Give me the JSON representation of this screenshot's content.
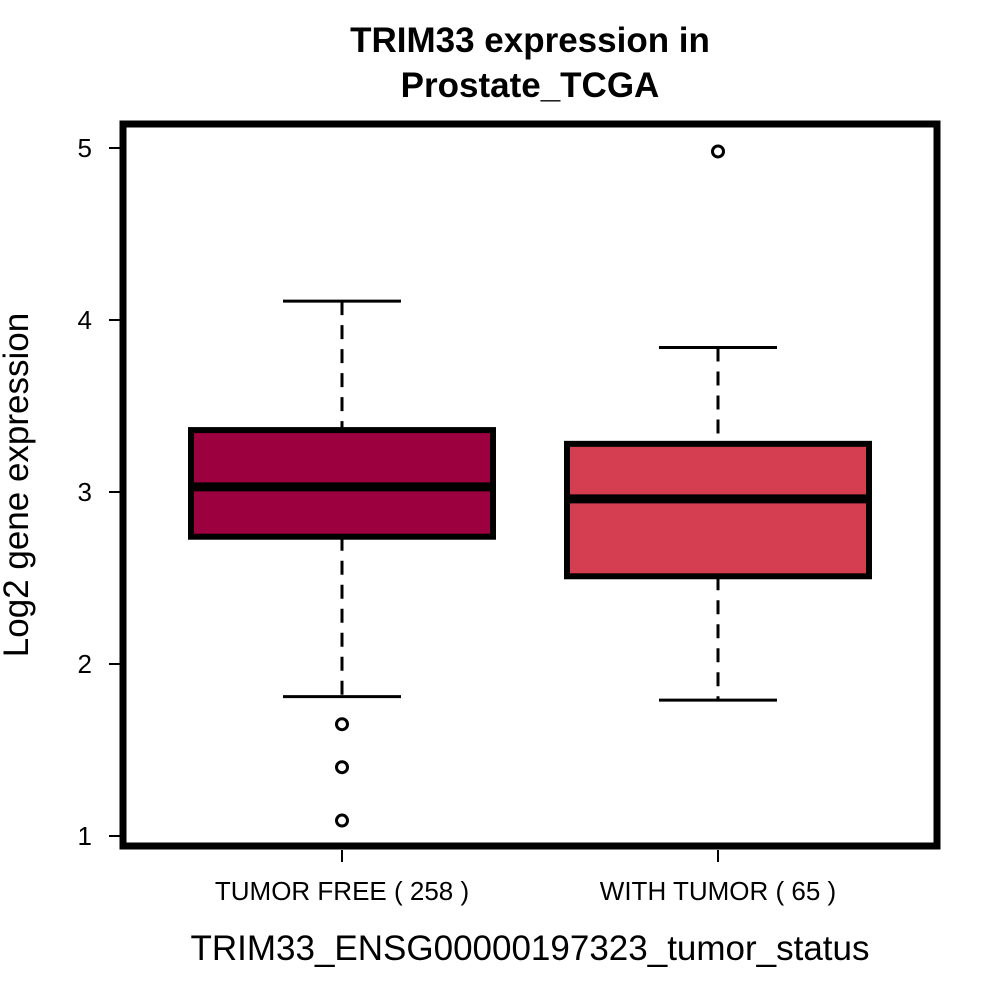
{
  "chart_data": {
    "type": "boxplot",
    "title_lines": [
      "TRIM33 expression in",
      "Prostate_TCGA"
    ],
    "xlabel": "TRIM33_ENSG00000197323_tumor_status",
    "ylabel": "Log2 gene expression",
    "yticks": [
      "1",
      "2",
      "3",
      "4",
      "5"
    ],
    "ylim": [
      0.94,
      5.14
    ],
    "grid": false,
    "boxes": [
      {
        "label": "TUMOR FREE ( 258 )",
        "color": "#9c003e",
        "whisker_low": 1.81,
        "q1": 2.74,
        "median": 3.03,
        "q3": 3.36,
        "whisker_high": 4.11,
        "outliers": [
          1.65,
          1.4,
          1.09
        ]
      },
      {
        "label": "WITH TUMOR ( 65 )",
        "color": "#d43e50",
        "whisker_low": 1.79,
        "q1": 2.51,
        "median": 2.96,
        "q3": 3.28,
        "whisker_high": 3.84,
        "outliers": [
          4.98
        ]
      }
    ]
  }
}
